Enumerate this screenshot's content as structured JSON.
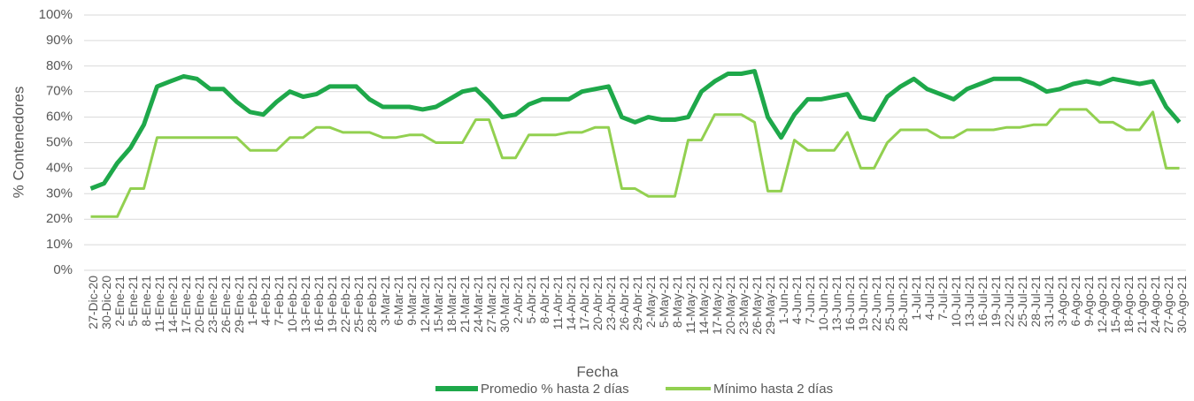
{
  "chart_data": {
    "type": "line",
    "ylabel": "% Contenedores",
    "xlabel": "Fecha",
    "categories": [
      "27-Dic-20",
      "30-Dic-20",
      "2-Ene-21",
      "5-Ene-21",
      "8-Ene-21",
      "11-Ene-21",
      "14-Ene-21",
      "17-Ene-21",
      "20-Ene-21",
      "23-Ene-21",
      "26-Ene-21",
      "29-Ene-21",
      "1-Feb-21",
      "4-Feb-21",
      "7-Feb-21",
      "10-Feb-21",
      "13-Feb-21",
      "16-Feb-21",
      "19-Feb-21",
      "22-Feb-21",
      "25-Feb-21",
      "28-Feb-21",
      "3-Mar-21",
      "6-Mar-21",
      "9-Mar-21",
      "12-Mar-21",
      "15-Mar-21",
      "18-Mar-21",
      "21-Mar-21",
      "24-Mar-21",
      "27-Mar-21",
      "30-Mar-21",
      "2-Abr-21",
      "5-Abr-21",
      "8-Abr-21",
      "11-Abr-21",
      "14-Abr-21",
      "17-Abr-21",
      "20-Abr-21",
      "23-Abr-21",
      "26-Abr-21",
      "29-Abr-21",
      "2-May-21",
      "5-May-21",
      "8-May-21",
      "11-May-21",
      "14-May-21",
      "17-May-21",
      "20-May-21",
      "23-May-21",
      "26-May-21",
      "29-May-21",
      "1-Jun-21",
      "4-Jun-21",
      "7-Jun-21",
      "10-Jun-21",
      "13-Jun-21",
      "16-Jun-21",
      "19-Jun-21",
      "22-Jun-21",
      "25-Jun-21",
      "28-Jun-21",
      "1-Jul-21",
      "4-Jul-21",
      "7-Jul-21",
      "10-Jul-21",
      "13-Jul-21",
      "16-Jul-21",
      "19-Jul-21",
      "22-Jul-21",
      "25-Jul-21",
      "28-Jul-21",
      "31-Jul-21",
      "3-Ago-21",
      "6-Ago-21",
      "9-Ago-21",
      "12-Ago-21",
      "15-Ago-21",
      "18-Ago-21",
      "21-Ago-21",
      "24-Ago-21",
      "27-Ago-21",
      "30-Ago-21"
    ],
    "series": [
      {
        "name": "Promedio % hasta 2 días",
        "color": "#1ea84a",
        "width": 5,
        "values": [
          32,
          34,
          42,
          48,
          57,
          72,
          74,
          76,
          75,
          71,
          71,
          66,
          62,
          61,
          66,
          70,
          68,
          69,
          72,
          72,
          72,
          67,
          64,
          64,
          64,
          63,
          64,
          67,
          70,
          71,
          66,
          60,
          61,
          65,
          67,
          67,
          67,
          70,
          71,
          72,
          60,
          58,
          60,
          59,
          59,
          60,
          70,
          74,
          77,
          77,
          78,
          60,
          52,
          61,
          67,
          67,
          68,
          69,
          60,
          59,
          68,
          72,
          75,
          71,
          69,
          67,
          71,
          73,
          75,
          75,
          75,
          73,
          70,
          71,
          73,
          74,
          73,
          75,
          74,
          73,
          74,
          64,
          58
        ]
      },
      {
        "name": "Mínimo hasta 2 días",
        "color": "#92d050",
        "width": 3,
        "values": [
          21,
          21,
          21,
          32,
          32,
          52,
          52,
          52,
          52,
          52,
          52,
          52,
          47,
          47,
          47,
          52,
          52,
          56,
          56,
          54,
          54,
          54,
          52,
          52,
          53,
          53,
          50,
          50,
          50,
          59,
          59,
          44,
          44,
          53,
          53,
          53,
          54,
          54,
          56,
          56,
          32,
          32,
          29,
          29,
          29,
          51,
          51,
          61,
          61,
          61,
          58,
          31,
          31,
          51,
          47,
          47,
          47,
          54,
          40,
          40,
          50,
          55,
          55,
          55,
          52,
          52,
          55,
          55,
          55,
          56,
          56,
          57,
          57,
          63,
          63,
          63,
          58,
          58,
          55,
          55,
          62,
          40,
          40
        ]
      }
    ],
    "ylim": [
      0,
      100
    ],
    "yticks": [
      {
        "value": 0,
        "label": "0%"
      },
      {
        "value": 10,
        "label": "10%"
      },
      {
        "value": 20,
        "label": "20%"
      },
      {
        "value": 30,
        "label": "30%"
      },
      {
        "value": 40,
        "label": "40%"
      },
      {
        "value": 50,
        "label": "50%"
      },
      {
        "value": 60,
        "label": "60%"
      },
      {
        "value": 70,
        "label": "70%"
      },
      {
        "value": 80,
        "label": "80%"
      },
      {
        "value": 90,
        "label": "90%"
      },
      {
        "value": 100,
        "label": "100%"
      }
    ],
    "grid": true,
    "legend": "bottom"
  }
}
